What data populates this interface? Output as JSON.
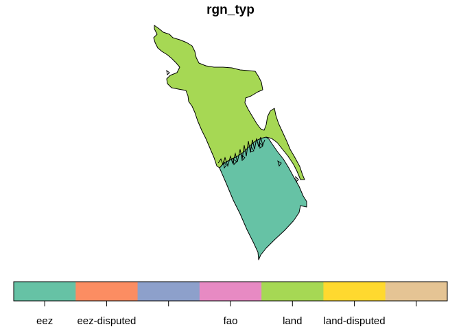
{
  "map": {
    "title": "rgn_typ",
    "regions": [
      {
        "name": "land",
        "category": "land"
      },
      {
        "name": "eez",
        "category": "eez"
      }
    ]
  },
  "legend": {
    "categories": [
      {
        "key": "eez",
        "label": "eez",
        "color": "#66C2A5"
      },
      {
        "key": "eez-disputed",
        "label": "eez-disputed",
        "color": "#FC8D62"
      },
      {
        "key": "c3",
        "label": "",
        "color": "#8DA0CB"
      },
      {
        "key": "fao",
        "label": "fao",
        "color": "#E78AC3"
      },
      {
        "key": "land",
        "label": "land",
        "color": "#A6D854"
      },
      {
        "key": "land-disputed",
        "label": "land-disputed",
        "color": "#FFD92F"
      },
      {
        "key": "c7",
        "label": "",
        "color": "#E5C494"
      }
    ]
  }
}
